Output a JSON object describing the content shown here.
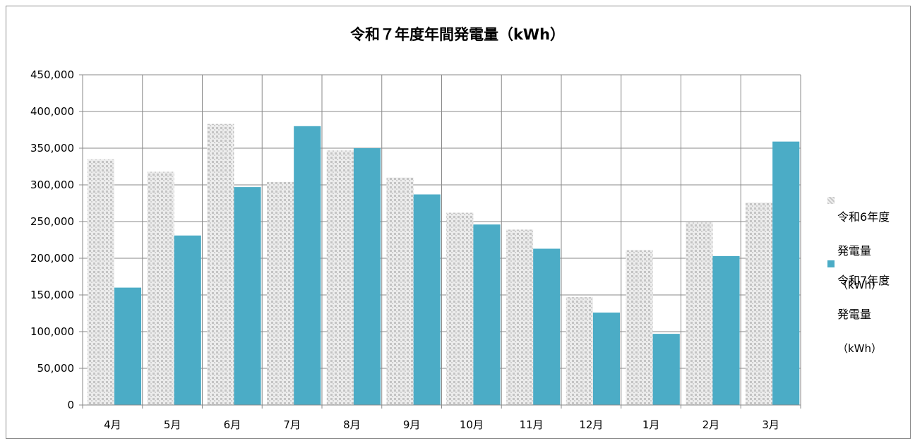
{
  "chart_data": {
    "type": "bar",
    "title": "令和７年度年間発電量（kWh）",
    "categories": [
      "4月",
      "5月",
      "6月",
      "7月",
      "8月",
      "9月",
      "10月",
      "11月",
      "12月",
      "1月",
      "2月",
      "3月"
    ],
    "series": [
      {
        "name": "令和6年度\n発電量\n（kWh）",
        "name_lines": [
          "令和6年度",
          "発電量",
          "（kWh）"
        ],
        "color": "#d4d4d4",
        "pattern": "dotted",
        "values": [
          335000,
          318000,
          383000,
          304000,
          347000,
          310000,
          262000,
          239000,
          147000,
          211000,
          249000,
          276000
        ]
      },
      {
        "name": "令和7年度\n発電量\n（kWh）",
        "name_lines": [
          "令和7年度",
          "発電量",
          "（kWh）"
        ],
        "color": "#4bacc6",
        "pattern": "solid",
        "values": [
          160000,
          231000,
          297000,
          380000,
          350000,
          287000,
          246000,
          213000,
          126000,
          97000,
          203000,
          359000
        ]
      }
    ],
    "ylim": [
      0,
      450000
    ],
    "yticks": [
      "0",
      "50,000",
      "100,000",
      "150,000",
      "200,000",
      "250,000",
      "300,000",
      "350,000",
      "400,000",
      "450,000"
    ],
    "grid": true,
    "legend_position": "right"
  }
}
